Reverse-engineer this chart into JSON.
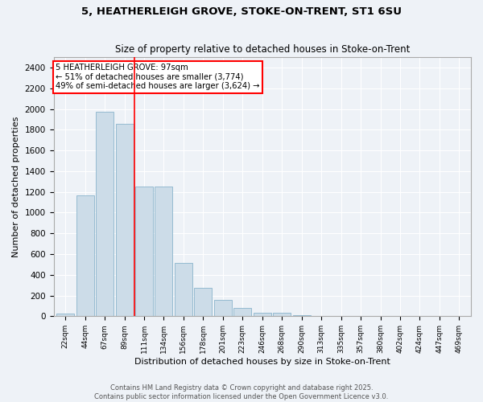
{
  "title1": "5, HEATHERLEIGH GROVE, STOKE-ON-TRENT, ST1 6SU",
  "title2": "Size of property relative to detached houses in Stoke-on-Trent",
  "xlabel": "Distribution of detached houses by size in Stoke-on-Trent",
  "ylabel": "Number of detached properties",
  "bar_labels": [
    "22sqm",
    "44sqm",
    "67sqm",
    "89sqm",
    "111sqm",
    "134sqm",
    "156sqm",
    "178sqm",
    "201sqm",
    "223sqm",
    "246sqm",
    "268sqm",
    "290sqm",
    "313sqm",
    "335sqm",
    "357sqm",
    "380sqm",
    "402sqm",
    "424sqm",
    "447sqm",
    "469sqm"
  ],
  "bar_values": [
    25,
    1170,
    1970,
    1860,
    1250,
    1250,
    515,
    275,
    155,
    80,
    35,
    30,
    10,
    5,
    5,
    2,
    2,
    1,
    1,
    1,
    1
  ],
  "bar_color": "#ccdce8",
  "bar_edgecolor": "#8ab4cc",
  "vline_x": 3.5,
  "vline_color": "red",
  "annotation_text": "5 HEATHERLEIGH GROVE: 97sqm\n← 51% of detached houses are smaller (3,774)\n49% of semi-detached houses are larger (3,624) →",
  "annotation_box_color": "white",
  "annotation_box_edgecolor": "red",
  "ylim": [
    0,
    2500
  ],
  "yticks": [
    0,
    200,
    400,
    600,
    800,
    1000,
    1200,
    1400,
    1600,
    1800,
    2000,
    2200,
    2400
  ],
  "footer1": "Contains HM Land Registry data © Crown copyright and database right 2025.",
  "footer2": "Contains public sector information licensed under the Open Government Licence v3.0.",
  "bg_color": "#eef2f7",
  "grid_color": "#ffffff",
  "spine_color": "#aaaaaa"
}
